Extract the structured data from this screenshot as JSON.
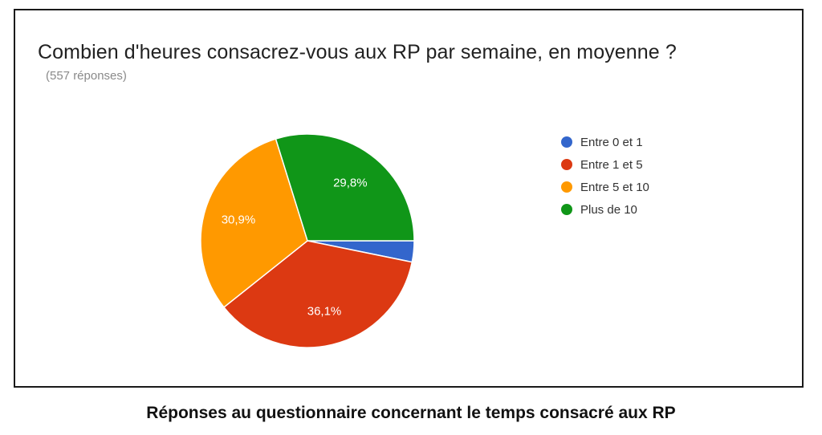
{
  "chart_data": {
    "type": "pie",
    "title": "Combien d'heures consacrez-vous aux RP par semaine, en moyenne ?",
    "subtitle": "(557 réponses)",
    "categories": [
      "Entre 0 et 1",
      "Entre 1 et 5",
      "Entre 5 et 10",
      "Plus de 10"
    ],
    "values": [
      3.2,
      36.1,
      30.9,
      29.8
    ],
    "value_labels": [
      "",
      "36,1%",
      "30,9%",
      "29,8%"
    ],
    "colors": [
      "#3366cc",
      "#dc3912",
      "#ff9900",
      "#109618"
    ],
    "legend_position": "right",
    "start_angle_deg": 90,
    "direction": "clockwise"
  },
  "caption": "Réponses au questionnaire concernant le temps consacré aux RP"
}
